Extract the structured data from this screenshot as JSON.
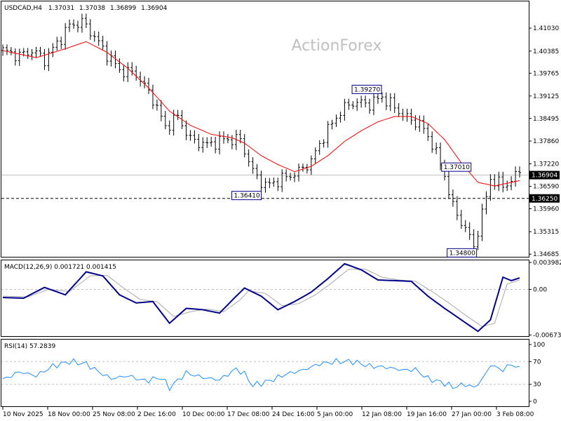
{
  "chart_data": [
    {
      "type": "ohlc",
      "title": "USDCAD,H4",
      "ohlc": [
        "1.37031",
        "1.37038",
        "1.36899",
        "1.36904"
      ],
      "watermark": "ActionForex",
      "y_ticks": [
        "1.41030",
        "1.40385",
        "1.39765",
        "1.39125",
        "1.38495",
        "1.37860",
        "1.37220",
        "1.36590",
        "1.35960",
        "1.35315",
        "1.34685"
      ],
      "ylim": [
        1.3463,
        1.4176
      ],
      "current_price": {
        "label": "1.36904",
        "value": 1.36904
      },
      "support_level": {
        "label": "1.36250",
        "value": 1.3625
      },
      "annotations": [
        {
          "label": "1.39270",
          "x": 88,
          "price": 1.3927
        },
        {
          "label": "1.36410",
          "x": 61,
          "price": 1.3641
        },
        {
          "label": "1.37010",
          "x": 111,
          "price": 1.3701
        },
        {
          "label": "1.34800",
          "x": 113,
          "price": 1.348
        }
      ],
      "price_keypoints": [
        [
          0,
          1.404
        ],
        [
          4,
          1.4025
        ],
        [
          7,
          1.404
        ],
        [
          10,
          1.4015
        ],
        [
          13,
          1.406
        ],
        [
          16,
          1.411
        ],
        [
          19,
          1.412
        ],
        [
          21,
          1.4095
        ],
        [
          24,
          1.4045
        ],
        [
          28,
          1.3985
        ],
        [
          32,
          1.3975
        ],
        [
          36,
          1.3905
        ],
        [
          39,
          1.3825
        ],
        [
          42,
          1.3855
        ],
        [
          45,
          1.379
        ],
        [
          49,
          1.3775
        ],
        [
          53,
          1.379
        ],
        [
          57,
          1.379
        ],
        [
          60,
          1.37
        ],
        [
          63,
          1.366
        ],
        [
          67,
          1.368
        ],
        [
          71,
          1.37
        ],
        [
          74,
          1.373
        ],
        [
          77,
          1.38
        ],
        [
          81,
          1.387
        ],
        [
          84,
          1.3895
        ],
        [
          88,
          1.389
        ],
        [
          91,
          1.391
        ],
        [
          94,
          1.388
        ],
        [
          97,
          1.385
        ],
        [
          100,
          1.3835
        ],
        [
          103,
          1.378
        ],
        [
          106,
          1.369
        ],
        [
          108,
          1.36
        ],
        [
          111,
          1.354
        ],
        [
          113,
          1.349
        ],
        [
          115,
          1.358
        ],
        [
          117,
          1.368
        ],
        [
          120,
          1.366
        ],
        [
          122,
          1.3675
        ],
        [
          124,
          1.37
        ]
      ],
      "ma_keypoints": [
        [
          0,
          1.404
        ],
        [
          8,
          1.402
        ],
        [
          15,
          1.4045
        ],
        [
          20,
          1.4065
        ],
        [
          25,
          1.4035
        ],
        [
          30,
          1.399
        ],
        [
          35,
          1.3935
        ],
        [
          40,
          1.387
        ],
        [
          45,
          1.383
        ],
        [
          50,
          1.3805
        ],
        [
          55,
          1.3795
        ],
        [
          58,
          1.378
        ],
        [
          62,
          1.3745
        ],
        [
          66,
          1.372
        ],
        [
          70,
          1.37
        ],
        [
          74,
          1.3715
        ],
        [
          78,
          1.3745
        ],
        [
          82,
          1.3785
        ],
        [
          86,
          1.3815
        ],
        [
          90,
          1.384
        ],
        [
          94,
          1.3855
        ],
        [
          98,
          1.3855
        ],
        [
          102,
          1.3835
        ],
        [
          106,
          1.379
        ],
        [
          110,
          1.3725
        ],
        [
          114,
          1.367
        ],
        [
          118,
          1.366
        ],
        [
          122,
          1.367
        ],
        [
          124,
          1.3675
        ]
      ]
    },
    {
      "type": "line",
      "title": "MACD(12,26,9) 0.001721 0.001415",
      "y_ticks": [
        "0.003982",
        "0.00",
        "-0.006737"
      ],
      "ylim": [
        -0.0068,
        0.0042
      ],
      "series": [
        {
          "color": "#00008b",
          "keypoints": [
            [
              0,
              -0.0012
            ],
            [
              5,
              -0.0013
            ],
            [
              10,
              0.0003
            ],
            [
              15,
              -0.0008
            ],
            [
              20,
              0.0026
            ],
            [
              24,
              0.002
            ],
            [
              28,
              -0.0008
            ],
            [
              32,
              -0.002
            ],
            [
              36,
              -0.0018
            ],
            [
              40,
              -0.005
            ],
            [
              44,
              -0.0028
            ],
            [
              48,
              -0.003
            ],
            [
              52,
              -0.0035
            ],
            [
              56,
              -0.001
            ],
            [
              58,
              0.0002
            ],
            [
              62,
              -0.001
            ],
            [
              66,
              -0.003
            ],
            [
              70,
              -0.0018
            ],
            [
              74,
              -0.0004
            ],
            [
              78,
              0.0016
            ],
            [
              82,
              0.0038
            ],
            [
              86,
              0.0029
            ],
            [
              90,
              0.0014
            ],
            [
              94,
              0.0013
            ],
            [
              98,
              0.0012
            ],
            [
              102,
              -0.001
            ],
            [
              106,
              -0.0028
            ],
            [
              110,
              -0.0045
            ],
            [
              114,
              -0.0062
            ],
            [
              117,
              -0.0045
            ],
            [
              120,
              0.0018
            ],
            [
              122,
              0.0013
            ],
            [
              124,
              0.0017
            ]
          ]
        },
        {
          "color": "#a9a9a9",
          "keypoints": [
            [
              0,
              -0.001
            ],
            [
              6,
              -0.0011
            ],
            [
              11,
              0.0
            ],
            [
              16,
              -0.0003
            ],
            [
              21,
              0.002
            ],
            [
              25,
              0.0021
            ],
            [
              29,
              0.0002
            ],
            [
              33,
              -0.0015
            ],
            [
              37,
              -0.0018
            ],
            [
              41,
              -0.004
            ],
            [
              45,
              -0.0033
            ],
            [
              49,
              -0.0029
            ],
            [
              53,
              -0.0033
            ],
            [
              57,
              -0.0015
            ],
            [
              59,
              -0.0002
            ],
            [
              63,
              -0.0006
            ],
            [
              67,
              -0.0024
            ],
            [
              71,
              -0.0021
            ],
            [
              75,
              -0.0008
            ],
            [
              79,
              0.001
            ],
            [
              83,
              0.003
            ],
            [
              87,
              0.003
            ],
            [
              91,
              0.0018
            ],
            [
              95,
              0.0014
            ],
            [
              99,
              0.0012
            ],
            [
              103,
              -0.0003
            ],
            [
              107,
              -0.002
            ],
            [
              111,
              -0.0038
            ],
            [
              115,
              -0.0055
            ],
            [
              118,
              -0.005
            ],
            [
              121,
              0.0008
            ],
            [
              123,
              0.0012
            ],
            [
              124,
              0.0014
            ]
          ]
        }
      ]
    },
    {
      "type": "line",
      "title": "RSI(14) 57.2839",
      "y_ticks": [
        "100",
        "70",
        "30",
        "0"
      ],
      "ylim": [
        0,
        100
      ],
      "levels": [
        70,
        30
      ],
      "series": [
        {
          "color": "#1e90ff",
          "keypoints": [
            [
              0,
              38
            ],
            [
              4,
              52
            ],
            [
              8,
              45
            ],
            [
              12,
              62
            ],
            [
              16,
              70
            ],
            [
              20,
              66
            ],
            [
              23,
              52
            ],
            [
              26,
              40
            ],
            [
              30,
              45
            ],
            [
              34,
              36
            ],
            [
              38,
              42
            ],
            [
              40,
              24
            ],
            [
              44,
              50
            ],
            [
              48,
              42
            ],
            [
              52,
              38
            ],
            [
              56,
              57
            ],
            [
              58,
              48
            ],
            [
              60,
              28
            ],
            [
              64,
              36
            ],
            [
              68,
              48
            ],
            [
              72,
              55
            ],
            [
              76,
              66
            ],
            [
              80,
              70
            ],
            [
              84,
              70
            ],
            [
              86,
              66
            ],
            [
              88,
              62
            ],
            [
              92,
              60
            ],
            [
              96,
              55
            ],
            [
              99,
              56
            ],
            [
              102,
              40
            ],
            [
              106,
              32
            ],
            [
              108,
              25
            ],
            [
              111,
              30
            ],
            [
              113,
              24
            ],
            [
              115,
              38
            ],
            [
              117,
              64
            ],
            [
              120,
              55
            ],
            [
              122,
              66
            ],
            [
              124,
              57
            ]
          ]
        }
      ]
    }
  ],
  "x_axis_labels": [
    "10 Nov 2025",
    "18 Nov 00:00",
    "25 Nov 08:00",
    "2 Dec 16:00",
    "10 Dec 00:00",
    "17 Dec 08:00",
    "24 Dec 16:00",
    "5 Jan 00:00",
    "12 Jan 08:00",
    "19 Jan 16:00",
    "27 Jan 00:00",
    "3 Feb 08:00"
  ],
  "colors": {
    "price_bars": "#000000",
    "moving_average": "#ff0000",
    "macd": "#00008b",
    "macd_signal": "#a9a9a9",
    "rsi": "#1e90ff",
    "current_price_tag": "#000000",
    "support_tag": "#000000"
  }
}
